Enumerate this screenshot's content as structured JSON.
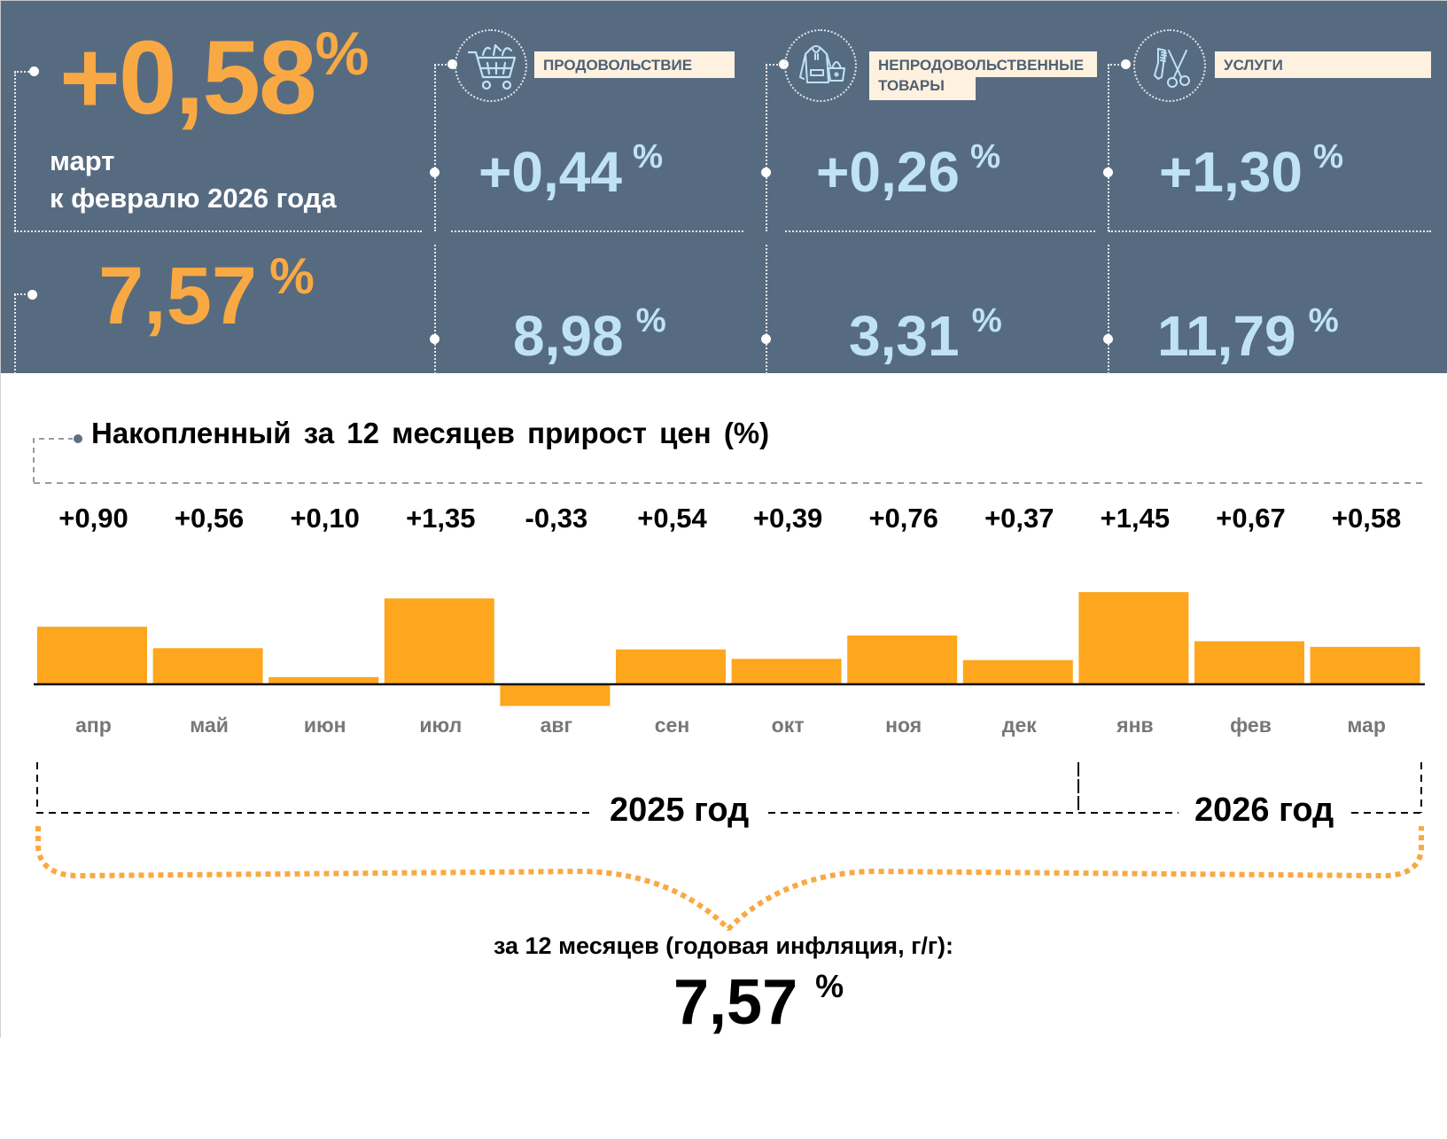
{
  "colors": {
    "panel_bg": "#576b80",
    "accent_orange": "#f9a943",
    "bar_orange": "#fda61e",
    "value_blue": "#bfe3f3",
    "label_bg": "#fff1df"
  },
  "summary": {
    "monthly": {
      "value": "+0,58",
      "unit": "%",
      "caption_line1": "март",
      "caption_line2": "к февралю 2026 года"
    },
    "annual": {
      "value": "7,57",
      "unit": "%"
    }
  },
  "categories": [
    {
      "icon": "shopping-cart-icon",
      "label": "ПРОДОВОЛЬСТВИЕ",
      "monthly": "+0,44",
      "annual": "8,98",
      "unit": "%"
    },
    {
      "icon": "hoodie-bag-icon",
      "label_line1": "НЕПРОДОВОЛЬСТВЕННЫЕ",
      "label_line2": "ТОВАРЫ",
      "monthly": "+0,26",
      "annual": "3,31",
      "unit": "%"
    },
    {
      "icon": "comb-scissors-icon",
      "label": "УСЛУГИ",
      "monthly": "+1,30",
      "annual": "11,79",
      "unit": "%"
    }
  ],
  "chart_data": {
    "type": "bar",
    "title": "Накопленный за 12 месяцев прирост цен (%)",
    "categories": [
      "апр",
      "май",
      "июн",
      "июл",
      "авг",
      "сен",
      "окт",
      "ноя",
      "дек",
      "янв",
      "фев",
      "мар"
    ],
    "values": [
      0.9,
      0.56,
      0.1,
      1.35,
      -0.33,
      0.54,
      0.39,
      0.76,
      0.37,
      1.45,
      0.67,
      0.58
    ],
    "value_labels": [
      "+0,90",
      "+0,56",
      "+0,10",
      "+1,35",
      "-0,33",
      "+0,54",
      "+0,39",
      "+0,76",
      "+0,37",
      "+1,45",
      "+0,67",
      "+0,58"
    ],
    "xlabel": "",
    "ylabel": "",
    "grid": false,
    "year_groups": [
      {
        "label": "2025 год",
        "months": 9
      },
      {
        "label": "2026 год",
        "months": 3
      }
    ]
  },
  "total": {
    "caption": "за 12 месяцев (годовая инфляция, г/г):",
    "value": "7,57",
    "unit": "%"
  }
}
